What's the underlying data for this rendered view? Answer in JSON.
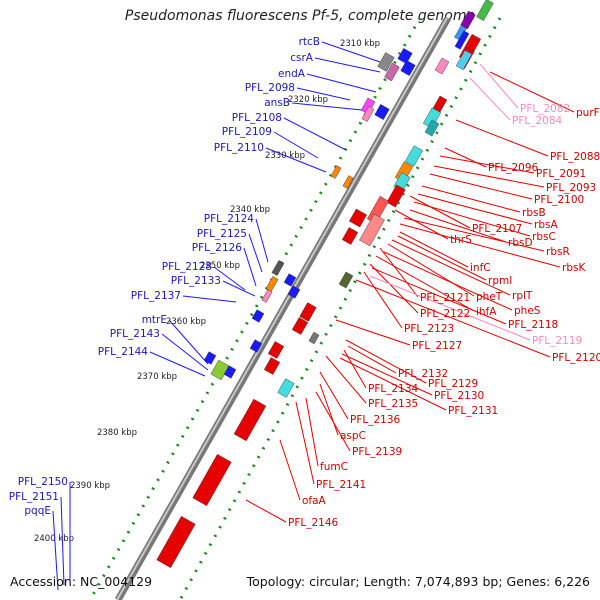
{
  "title": "Pseudomonas fluorescens Pf-5, complete genome",
  "footer": {
    "accession": "Accession: NC_004129",
    "summary": "Topology: circular; Length: 7,074,893 bp; Genes: 6,226"
  },
  "kbp_ticks": [
    "2310 kbp",
    "2320 kbp",
    "2330 kbp",
    "2340 kbp",
    "2350 kbp",
    "2360 kbp",
    "2370 kbp",
    "2380 kbp",
    "2390 kbp",
    "2400 kbp"
  ],
  "left_labels": [
    "rtcB",
    "csrA",
    "endA",
    "PFL_2098",
    "ansB",
    "PFL_2108",
    "PFL_2109",
    "PFL_2110",
    "PFL_2124",
    "PFL_2125",
    "PFL_2126",
    "PFL_2128",
    "PFL_2133",
    "PFL_2137",
    "mtrE",
    "PFL_2143",
    "PFL_2144",
    "PFL_2150",
    "PFL_2151",
    "pqqE"
  ],
  "right_labels": [
    "PFL_2082",
    "purF",
    "PFL_2084",
    "PFL_2088",
    "PFL_2096",
    "PFL_2091",
    "PFL_2093",
    "PFL_2100",
    "rbsB",
    "rbsA",
    "PFL_2107",
    "rbsC",
    "thrS",
    "rbsD",
    "rbsR",
    "rbsK",
    "infC",
    "rpmI",
    "rplT",
    "pheT",
    "PFL_2121",
    "pheS",
    "ihfA",
    "PFL_2122",
    "PFL_2118",
    "PFL_2123",
    "PFL_2119",
    "PFL_2127",
    "PFL_2120",
    "PFL_2132",
    "PFL_2129",
    "PFL_2134",
    "PFL_2130",
    "PFL_2135",
    "PFL_2131",
    "PFL_2136",
    "aspC",
    "PFL_2139",
    "fumC",
    "PFL_2141",
    "ofaA",
    "PFL_2146"
  ],
  "colors": {
    "forward": "#1a1aff",
    "reverse": "#e60000",
    "pale": "#ff88c0",
    "backbone": "#888888",
    "tick": "#1a8a1a"
  }
}
